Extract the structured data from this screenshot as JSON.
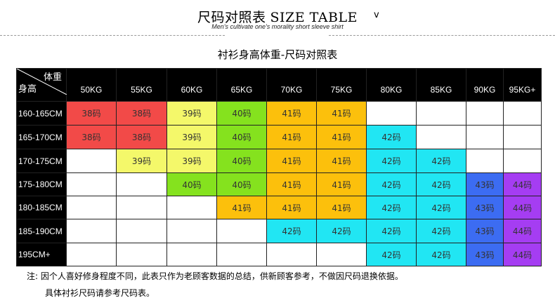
{
  "header": {
    "title_cn": "尺码对照表",
    "title_en": "SIZE TABLE",
    "chevron": "v",
    "subtitle": "Men's cultivate one's morality short sleeve shirt"
  },
  "caption": "衬衫身高体重-尺码对照表",
  "table": {
    "corner_weight": "体重",
    "corner_height": "身高",
    "weights": [
      "50KG",
      "55KG",
      "60KG",
      "65KG",
      "70KG",
      "75KG",
      "80KG",
      "85KG",
      "90KG",
      "95KG+"
    ],
    "rows": [
      {
        "height": "160-165CM",
        "cells": [
          "38码",
          "38码",
          "39码",
          "40码",
          "41码",
          "41码",
          "",
          "",
          "",
          ""
        ]
      },
      {
        "height": "165-170CM",
        "cells": [
          "38码",
          "38码",
          "39码",
          "40码",
          "41码",
          "41码",
          "42码",
          "",
          "",
          ""
        ]
      },
      {
        "height": "170-175CM",
        "cells": [
          "",
          "39码",
          "39码",
          "40码",
          "41码",
          "41码",
          "42码",
          "42码",
          "",
          ""
        ]
      },
      {
        "height": "175-180CM",
        "cells": [
          "",
          "",
          "40码",
          "40码",
          "41码",
          "41码",
          "42码",
          "42码",
          "43码",
          "44码"
        ]
      },
      {
        "height": "180-185CM",
        "cells": [
          "",
          "",
          "",
          "41码",
          "41码",
          "41码",
          "42码",
          "42码",
          "43码",
          "44码"
        ]
      },
      {
        "height": "185-190CM",
        "cells": [
          "",
          "",
          "",
          "",
          "42码",
          "42码",
          "42码",
          "42码",
          "43码",
          "44码"
        ]
      },
      {
        "height": "195CM+",
        "cells": [
          "",
          "",
          "",
          "",
          "",
          "",
          "42码",
          "42码",
          "43码",
          "44码"
        ]
      }
    ],
    "size_colors": {
      "38码": "#f24a48",
      "39码": "#f4f86a",
      "40码": "#85e21e",
      "41码": "#fcc00c",
      "42码": "#21e6f3",
      "43码": "#3c6cf2",
      "44码": "#a53df2"
    }
  },
  "notes": {
    "line1": "注: 因个人喜好修身程度不同，此表只作为老顾客数据的总结，供新顾客参考，不做因尺码退换依据。",
    "line2": "具体衬衫尺码请参考尺码表。"
  }
}
